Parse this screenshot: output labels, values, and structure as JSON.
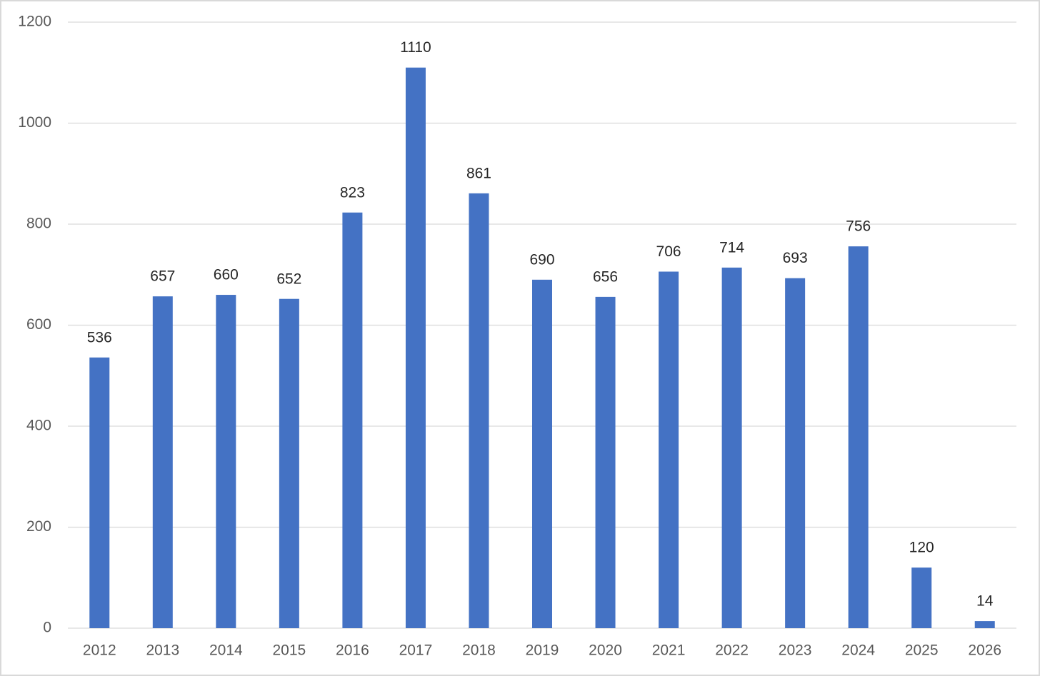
{
  "chart_data": {
    "type": "bar",
    "categories": [
      "2012",
      "2013",
      "2014",
      "2015",
      "2016",
      "2017",
      "2018",
      "2019",
      "2020",
      "2021",
      "2022",
      "2023",
      "2024",
      "2025",
      "2026"
    ],
    "values": [
      536,
      657,
      660,
      652,
      823,
      1110,
      861,
      690,
      656,
      706,
      714,
      693,
      756,
      120,
      14
    ],
    "color": "#4472c4",
    "ylim": [
      0,
      1200
    ],
    "yticks": [
      0,
      200,
      400,
      600,
      800,
      1000,
      1200
    ],
    "grid": true
  }
}
